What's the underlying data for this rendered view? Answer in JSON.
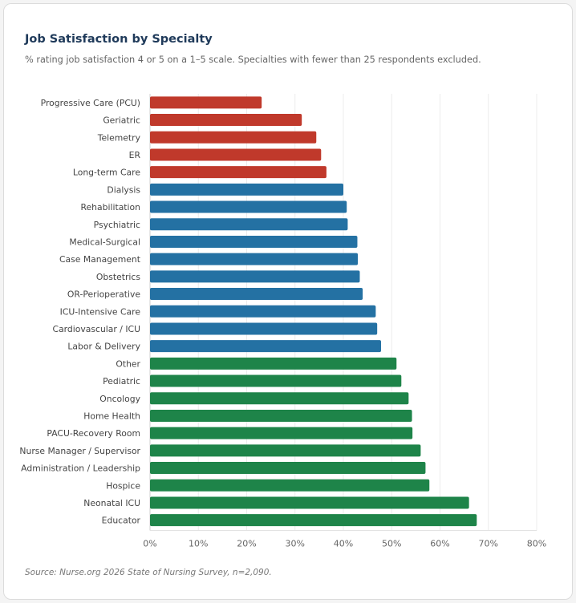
{
  "chart_data": {
    "type": "bar",
    "orientation": "horizontal",
    "title": "Job Satisfaction by Specialty",
    "subtitle": "% rating job satisfaction 4 or 5 on a 1–5 scale. Specialties with fewer than 25 respondents excluded.",
    "source": "Source: Nurse.org 2026 State of Nursing Survey, n=2,090.",
    "xlim": [
      0,
      80
    ],
    "xticks": [
      "0%",
      "10%",
      "20%",
      "30%",
      "40%",
      "50%",
      "60%",
      "70%",
      "80%"
    ],
    "grid": true,
    "colors": {
      "low": "#c0392b",
      "mid": "#2471a3",
      "high": "#1e8449"
    },
    "categories": [
      "Progressive Care (PCU)",
      "Geriatric",
      "Telemetry",
      "ER",
      "Long-term Care",
      "Dialysis",
      "Rehabilitation",
      "Psychiatric",
      "Medical-Surgical",
      "Case Management",
      "Obstetrics",
      "OR-Perioperative",
      "ICU-Intensive Care",
      "Cardiovascular / ICU",
      "Labor & Delivery",
      "Other",
      "Pediatric",
      "Oncology",
      "Home Health",
      "PACU-Recovery Room",
      "Nurse Manager / Supervisor",
      "Administration / Leadership",
      "Hospice",
      "Neonatal ICU",
      "Educator"
    ],
    "values": [
      23.1,
      31.4,
      34.4,
      35.4,
      36.5,
      40.0,
      40.7,
      40.9,
      42.9,
      43.0,
      43.4,
      44.0,
      46.7,
      47.0,
      47.8,
      51.0,
      52.0,
      53.5,
      54.2,
      54.3,
      56.0,
      57.0,
      57.8,
      66.0,
      67.6
    ],
    "groups": [
      "low",
      "low",
      "low",
      "low",
      "low",
      "mid",
      "mid",
      "mid",
      "mid",
      "mid",
      "mid",
      "mid",
      "mid",
      "mid",
      "mid",
      "high",
      "high",
      "high",
      "high",
      "high",
      "high",
      "high",
      "high",
      "high",
      "high"
    ]
  }
}
